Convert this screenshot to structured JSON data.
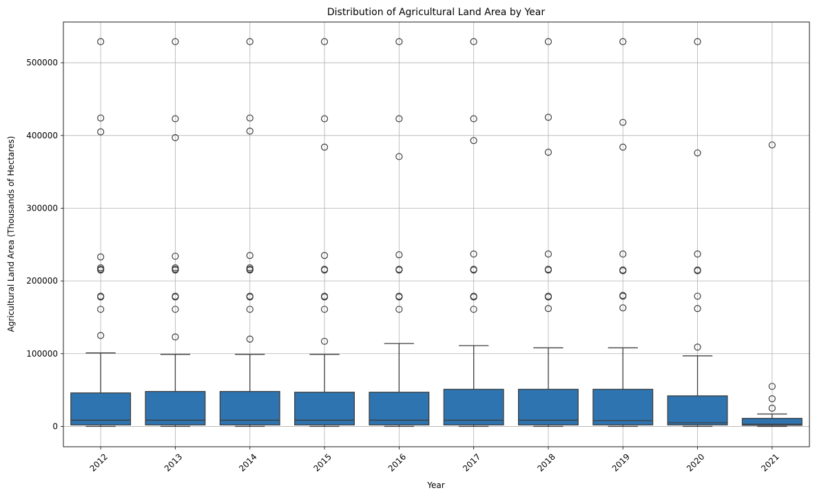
{
  "chart_data": {
    "type": "box",
    "title": "Distribution of Agricultural Land Area by Year",
    "xlabel": "Year",
    "ylabel": "Agricultural Land Area (Thousands of Hectares)",
    "ylim": [
      -28000,
      556000
    ],
    "yticks": [
      0,
      100000,
      200000,
      300000,
      400000,
      500000
    ],
    "grid": true,
    "box_color": "#2e74b0",
    "line_color": "#3d3d3d",
    "categories": [
      "2012",
      "2013",
      "2014",
      "2015",
      "2016",
      "2017",
      "2018",
      "2019",
      "2020",
      "2021"
    ],
    "boxes": [
      {
        "category": "2012",
        "whisker_low": 0,
        "q1": 2000,
        "median": 8500,
        "q3": 46000,
        "whisker_high": 101000,
        "fliers": [
          125000,
          161000,
          178000,
          179000,
          215000,
          216000,
          218000,
          233000,
          405000,
          424000,
          529000
        ]
      },
      {
        "category": "2013",
        "whisker_low": 0,
        "q1": 2000,
        "median": 8500,
        "q3": 48000,
        "whisker_high": 99000,
        "fliers": [
          123000,
          161000,
          178000,
          179000,
          215000,
          216000,
          218000,
          234000,
          397000,
          423000,
          529000
        ]
      },
      {
        "category": "2014",
        "whisker_low": 0,
        "q1": 2000,
        "median": 8500,
        "q3": 48000,
        "whisker_high": 99000,
        "fliers": [
          120000,
          161000,
          178000,
          179000,
          215000,
          216000,
          218000,
          235000,
          406000,
          424000,
          529000
        ]
      },
      {
        "category": "2015",
        "whisker_low": 0,
        "q1": 2000,
        "median": 8500,
        "q3": 47000,
        "whisker_high": 99000,
        "fliers": [
          117000,
          161000,
          178000,
          179000,
          215000,
          216000,
          235000,
          384000,
          423000,
          529000
        ]
      },
      {
        "category": "2016",
        "whisker_low": 0,
        "q1": 2000,
        "median": 8500,
        "q3": 47000,
        "whisker_high": 114000,
        "fliers": [
          161000,
          178000,
          179000,
          215000,
          216000,
          236000,
          371000,
          423000,
          529000
        ]
      },
      {
        "category": "2017",
        "whisker_low": 0,
        "q1": 2000,
        "median": 8500,
        "q3": 51000,
        "whisker_high": 111000,
        "fliers": [
          161000,
          178000,
          179000,
          215000,
          216000,
          237000,
          393000,
          423000,
          529000
        ]
      },
      {
        "category": "2018",
        "whisker_low": 0,
        "q1": 2000,
        "median": 8500,
        "q3": 51000,
        "whisker_high": 108000,
        "fliers": [
          162000,
          178000,
          179000,
          215000,
          216000,
          237000,
          377000,
          425000,
          529000
        ]
      },
      {
        "category": "2019",
        "whisker_low": 0,
        "q1": 2000,
        "median": 8000,
        "q3": 51000,
        "whisker_high": 108000,
        "fliers": [
          163000,
          179000,
          180000,
          214000,
          215000,
          237000,
          384000,
          418000,
          529000
        ]
      },
      {
        "category": "2020",
        "whisker_low": 0,
        "q1": 2000,
        "median": 5000,
        "q3": 42000,
        "whisker_high": 97000,
        "fliers": [
          109000,
          162000,
          179000,
          214000,
          215000,
          237000,
          376000,
          529000
        ]
      },
      {
        "category": "2021",
        "whisker_low": 0,
        "q1": 1500,
        "median": 3000,
        "q3": 11000,
        "whisker_high": 17000,
        "fliers": [
          25000,
          38000,
          55000,
          387000
        ]
      }
    ]
  }
}
